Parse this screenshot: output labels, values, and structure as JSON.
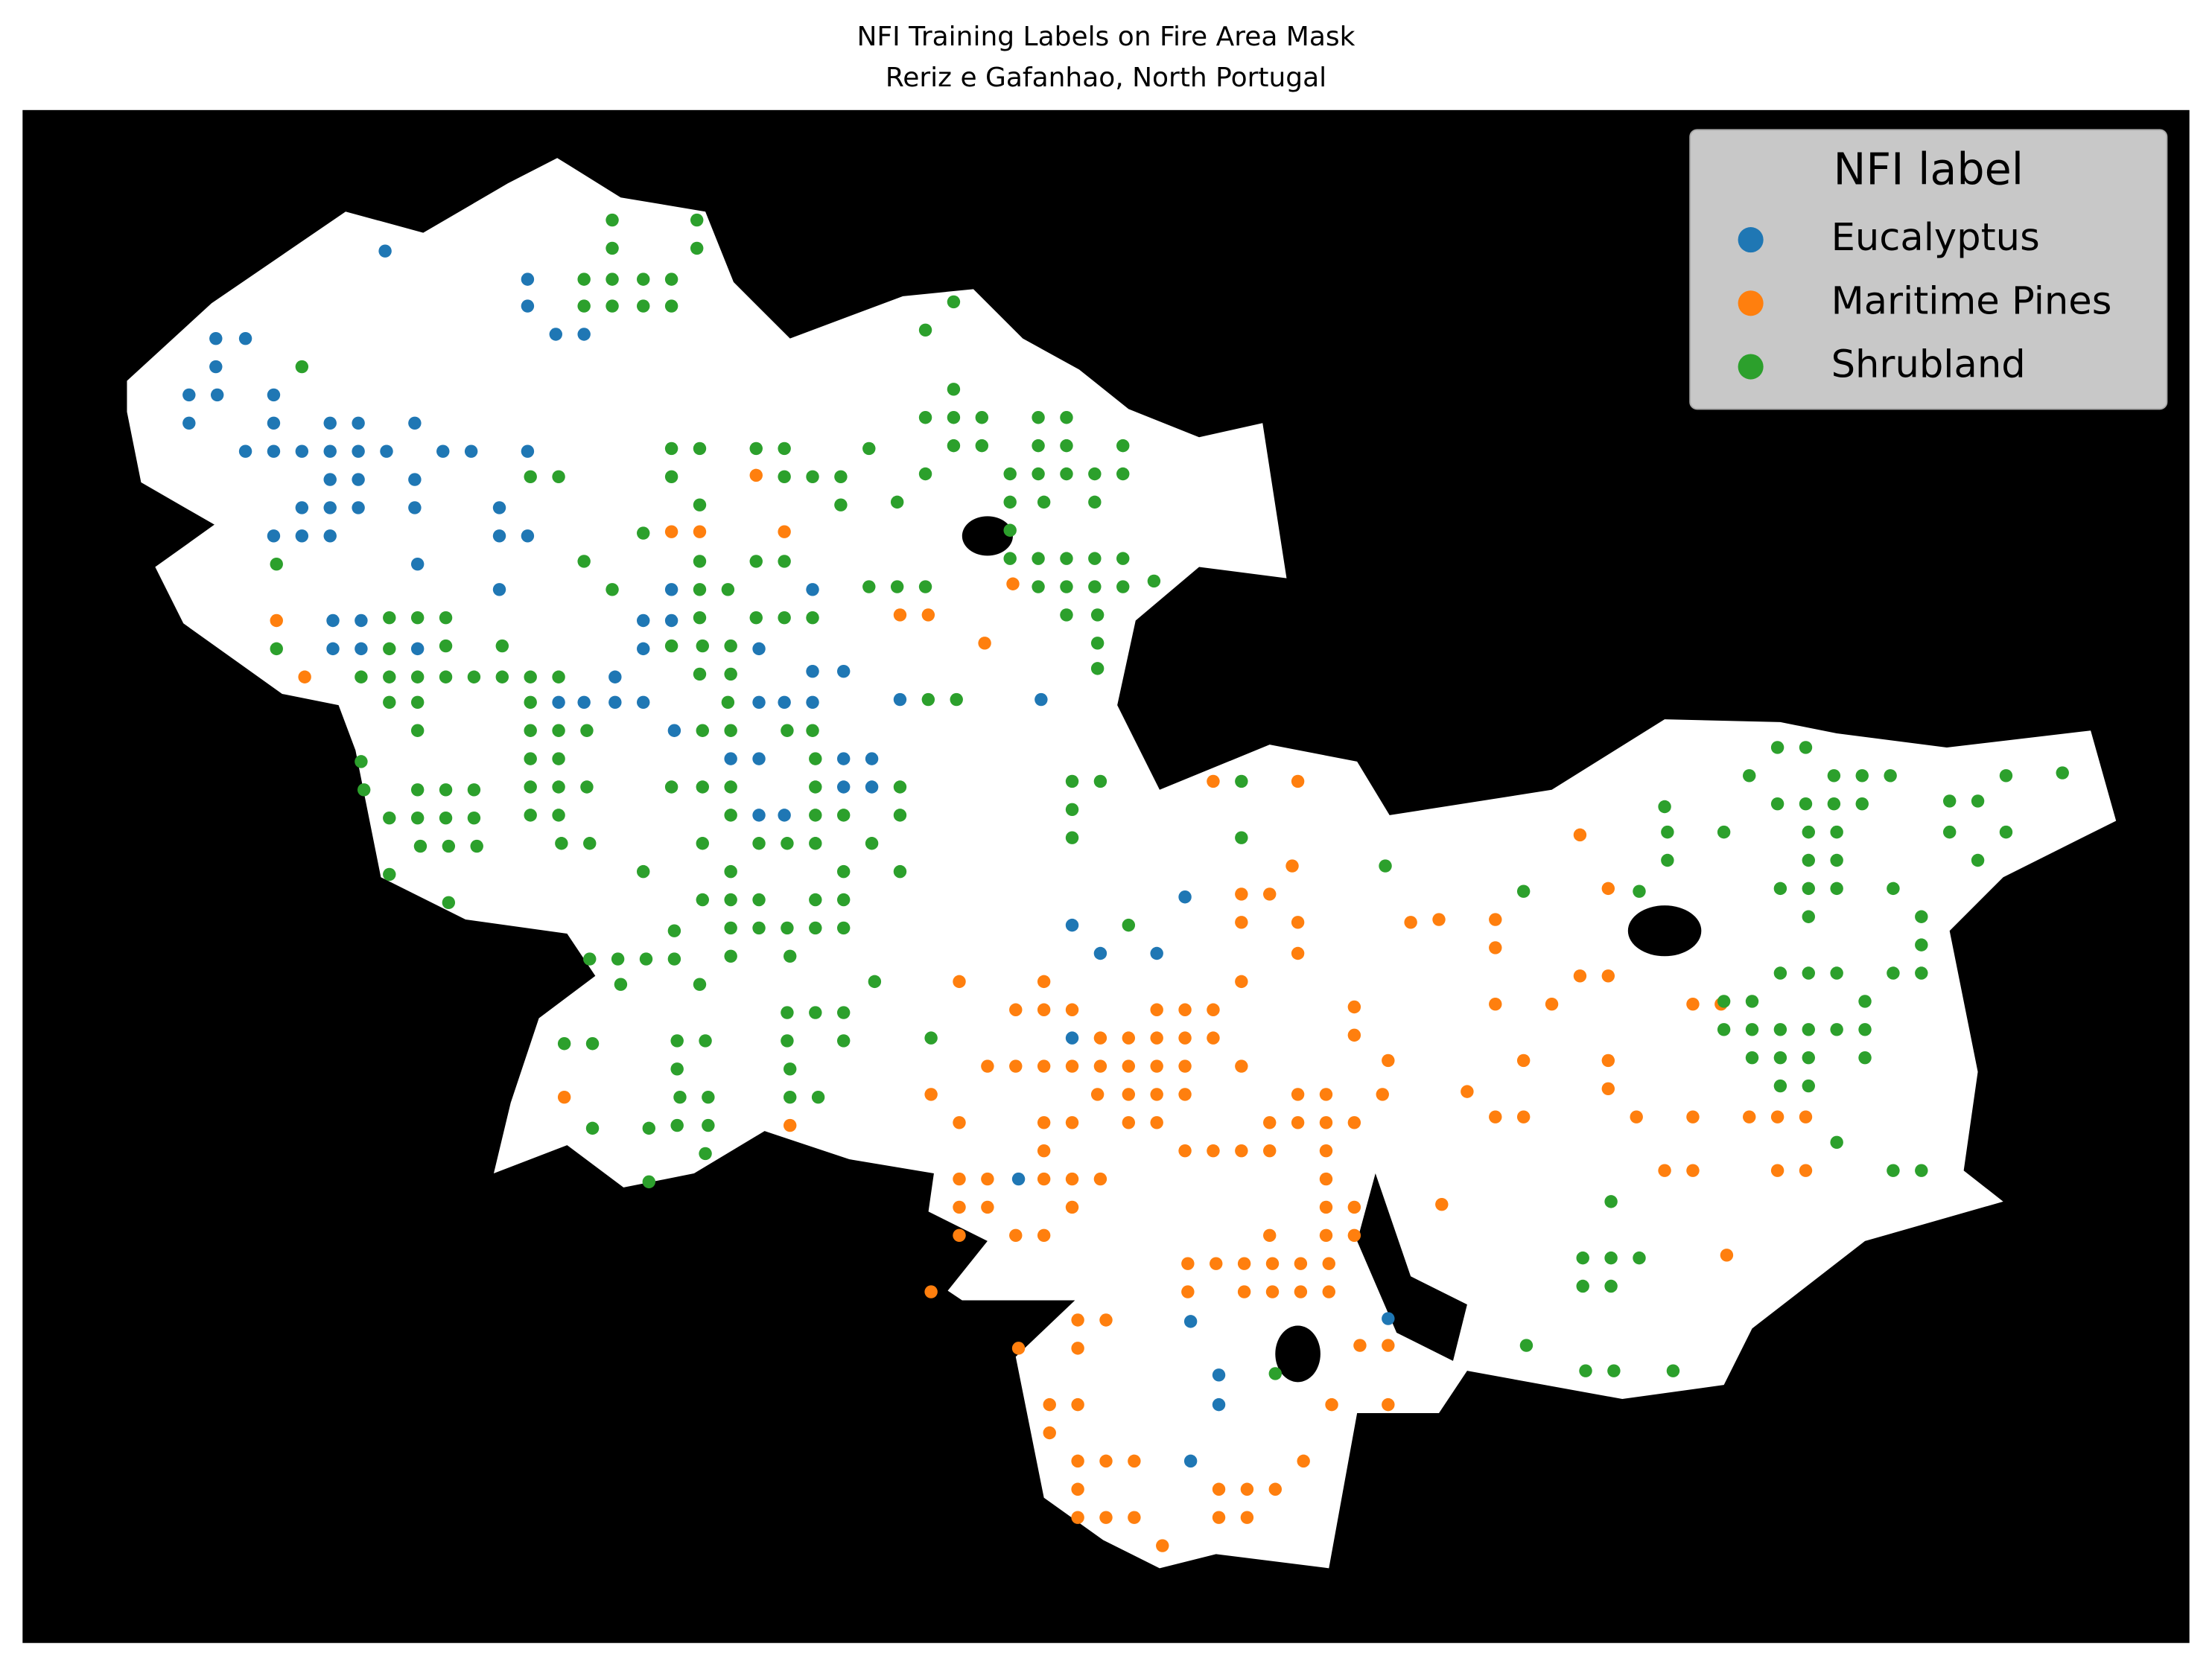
{
  "chart_data": {
    "type": "scatter",
    "title": "NFI Training Labels on Fire Area Mask",
    "subtitle": "Reriz e Gafanhao, North Portugal",
    "legend_title": "NFI label",
    "legend": "upper right",
    "xlim": [
      16,
      1552
    ],
    "ylim": [
      1165,
      78
    ],
    "series": [
      {
        "name": "Eucalyptus",
        "color": "#1f77b4",
        "x": [
          273,
          374,
          374,
          394,
          414,
          153,
          174,
          153,
          134,
          154,
          194,
          134,
          194,
          234,
          254,
          294,
          174,
          194,
          214,
          234,
          254,
          274,
          314,
          334,
          374,
          234,
          254,
          294,
          214,
          234,
          254,
          294,
          354,
          194,
          214,
          234,
          354,
          374,
          296,
          354,
          476,
          576,
          236,
          256,
          456,
          476,
          236,
          256,
          296,
          436,
          456,
          538,
          576,
          598,
          456,
          396,
          414,
          436,
          538,
          556,
          576,
          638,
          738,
          478,
          518,
          538,
          598,
          618,
          598,
          618,
          538,
          556,
          840,
          760,
          780,
          820,
          760,
          722,
          844,
          984,
          864,
          864,
          844
        ],
        "y": [
          178,
          198,
          217,
          237,
          237,
          240,
          240,
          260,
          280,
          280,
          280,
          300,
          300,
          300,
          300,
          300,
          320,
          320,
          320,
          320,
          320,
          320,
          320,
          320,
          320,
          340,
          340,
          340,
          360,
          360,
          360,
          360,
          360,
          380,
          380,
          380,
          380,
          380,
          400,
          418,
          418,
          418,
          440,
          440,
          440,
          440,
          460,
          460,
          460,
          480,
          460,
          460,
          476,
          476,
          498,
          498,
          498,
          498,
          498,
          498,
          498,
          496,
          496,
          518,
          538,
          538,
          538,
          538,
          558,
          558,
          578,
          578,
          636,
          656,
          676,
          676,
          736,
          836,
          937,
          935,
          975,
          996,
          1036
        ]
      },
      {
        "name": "Maritime Pines",
        "color": "#ff7f0e",
        "x": [
          536,
          476,
          496,
          556,
          196,
          638,
          658,
          718,
          698,
          216,
          860,
          920,
          916,
          880,
          900,
          880,
          920,
          1000,
          1020,
          1060,
          1120,
          1140,
          1060,
          680,
          740,
          880,
          920,
          1120,
          1140,
          1100,
          720,
          740,
          760,
          820,
          840,
          860,
          960,
          1060,
          1200,
          1220,
          780,
          800,
          820,
          840,
          860,
          960,
          1080,
          1140,
          700,
          720,
          740,
          760,
          780,
          800,
          820,
          840,
          880,
          984,
          660,
          778,
          800,
          820,
          840,
          920,
          940,
          980,
          1040,
          1140,
          680,
          740,
          760,
          800,
          820,
          900,
          920,
          940,
          960,
          1060,
          1080,
          1160,
          1200,
          1240,
          1260,
          1280,
          560,
          400,
          740,
          840,
          860,
          880,
          900,
          940,
          680,
          700,
          740,
          760,
          780,
          940,
          1180,
          1200,
          1260,
          1280,
          680,
          700,
          760,
          940,
          960,
          1022,
          680,
          720,
          740,
          900,
          940,
          960,
          842,
          862,
          882,
          902,
          922,
          942,
          1224,
          842,
          882,
          902,
          922,
          942,
          660,
          764,
          784,
          722,
          764,
          964,
          984,
          744,
          764,
          944,
          984,
          744,
          764,
          784,
          804,
          924,
          764,
          864,
          884,
          904,
          764,
          784,
          804,
          864,
          884,
          824
        ],
        "y": [
          337,
          377,
          377,
          377,
          440,
          436,
          436,
          414,
          456,
          480,
          554,
          554,
          614,
          634,
          634,
          654,
          654,
          654,
          652,
          652,
          592,
          630,
          672,
          696,
          696,
          696,
          676,
          692,
          692,
          712,
          716,
          716,
          716,
          716,
          716,
          716,
          714,
          712,
          712,
          712,
          736,
          736,
          736,
          736,
          736,
          734,
          752,
          752,
          756,
          756,
          756,
          756,
          756,
          756,
          756,
          756,
          756,
          752,
          776,
          776,
          776,
          776,
          776,
          776,
          776,
          776,
          774,
          772,
          796,
          796,
          796,
          796,
          796,
          796,
          796,
          796,
          796,
          792,
          792,
          792,
          792,
          792,
          792,
          792,
          798,
          778,
          816,
          816,
          816,
          816,
          816,
          816,
          836,
          836,
          836,
          836,
          836,
          836,
          830,
          830,
          830,
          830,
          856,
          856,
          856,
          856,
          856,
          854,
          876,
          876,
          876,
          876,
          876,
          876,
          896,
          896,
          896,
          896,
          896,
          896,
          890,
          916,
          916,
          916,
          916,
          916,
          916,
          936,
          936,
          956,
          956,
          954,
          954,
          996,
          996,
          996,
          996,
          1016,
          1036,
          1036,
          1036,
          1036,
          1056,
          1056,
          1056,
          1056,
          1076,
          1076,
          1076,
          1076,
          1076,
          1096
        ]
      },
      {
        "name": "Shrubland",
        "color": "#2ca02c",
        "x": [
          434,
          494,
          434,
          494,
          414,
          434,
          456,
          476,
          414,
          434,
          456,
          476,
          676,
          656,
          214,
          676,
          656,
          676,
          696,
          736,
          756,
          476,
          496,
          536,
          556,
          616,
          676,
          696,
          736,
          756,
          796,
          376,
          396,
          476,
          556,
          576,
          596,
          656,
          716,
          736,
          756,
          776,
          796,
          496,
          596,
          636,
          716,
          740,
          776,
          456,
          716,
          196,
          414,
          496,
          536,
          556,
          716,
          736,
          756,
          776,
          796,
          434,
          496,
          516,
          616,
          636,
          656,
          736,
          756,
          776,
          796,
          818,
          276,
          296,
          316,
          356,
          496,
          536,
          556,
          576,
          756,
          778,
          196,
          276,
          316,
          476,
          498,
          518,
          778,
          256,
          276,
          296,
          316,
          336,
          356,
          376,
          396,
          496,
          518,
          778,
          276,
          296,
          376,
          516,
          658,
          678,
          296,
          376,
          396,
          416,
          498,
          518,
          558,
          576,
          256,
          376,
          396,
          578,
          258,
          296,
          316,
          336,
          376,
          396,
          416,
          476,
          498,
          518,
          578,
          638,
          760,
          780,
          880,
          1240,
          1260,
          1280,
          1300,
          1320,
          1340,
          1422,
          1462,
          276,
          296,
          316,
          336,
          376,
          396,
          518,
          578,
          598,
          638,
          760,
          1180,
          1260,
          1280,
          1300,
          1320,
          1382,
          1402,
          1182,
          1222,
          1282,
          1302,
          1382,
          1422,
          298,
          318,
          338,
          398,
          418,
          498,
          538,
          558,
          578,
          618,
          760,
          880,
          1182,
          1282,
          1302,
          1402,
          276,
          456,
          518,
          598,
          638,
          982,
          1262,
          1282,
          1302,
          1342,
          1162,
          1080,
          318,
          498,
          518,
          538,
          578,
          598,
          800,
          1282,
          1362,
          478,
          518,
          538,
          558,
          578,
          598,
          1362,
          418,
          438,
          458,
          478,
          518,
          560,
          440,
          496,
          620,
          1262,
          1282,
          1302,
          1342,
          1362,
          1222,
          1242,
          1322,
          558,
          578,
          598,
          1222,
          1242,
          1262,
          1282,
          1302,
          1322,
          400,
          420,
          480,
          500,
          558,
          598,
          660,
          1242,
          1262,
          1282,
          1322,
          480,
          560,
          482,
          502,
          560,
          580,
          1262,
          1282,
          420,
          460,
          480,
          502,
          500,
          1302,
          1342,
          1362,
          460,
          1142,
          1122,
          1142,
          1162,
          1122,
          1142,
          1082,
          1124,
          1144,
          1186,
          904
        ],
        "y": [
          156,
          156,
          176,
          176,
          198,
          198,
          198,
          198,
          217,
          217,
          217,
          217,
          214,
          234,
          260,
          276,
          296,
          296,
          296,
          296,
          296,
          318,
          318,
          318,
          318,
          318,
          316,
          316,
          316,
          316,
          316,
          338,
          338,
          338,
          338,
          338,
          338,
          336,
          336,
          336,
          336,
          336,
          336,
          358,
          358,
          356,
          356,
          356,
          356,
          378,
          376,
          400,
          398,
          398,
          398,
          398,
          396,
          396,
          396,
          396,
          396,
          418,
          418,
          418,
          416,
          416,
          416,
          416,
          416,
          416,
          416,
          412,
          438,
          438,
          438,
          458,
          438,
          438,
          438,
          438,
          436,
          436,
          460,
          460,
          458,
          458,
          458,
          458,
          456,
          480,
          480,
          480,
          480,
          480,
          480,
          480,
          480,
          478,
          478,
          474,
          498,
          498,
          498,
          498,
          496,
          496,
          518,
          518,
          518,
          518,
          518,
          518,
          518,
          518,
          540,
          538,
          538,
          538,
          560,
          560,
          560,
          560,
          558,
          558,
          558,
          558,
          558,
          558,
          558,
          558,
          554,
          554,
          554,
          550,
          530,
          530,
          550,
          550,
          550,
          550,
          548,
          580,
          580,
          580,
          580,
          578,
          578,
          578,
          578,
          578,
          578,
          574,
          572,
          570,
          570,
          570,
          570,
          568,
          568,
          590,
          590,
          590,
          590,
          590,
          590,
          600,
          600,
          600,
          598,
          598,
          598,
          598,
          598,
          598,
          598,
          594,
          594,
          610,
          610,
          610,
          610,
          620,
          618,
          618,
          618,
          618,
          614,
          630,
          630,
          630,
          630,
          632,
          632,
          640,
          638,
          638,
          638,
          638,
          638,
          656,
          650,
          650,
          660,
          658,
          658,
          658,
          658,
          658,
          670,
          680,
          680,
          680,
          680,
          678,
          678,
          698,
          698,
          696,
          690,
          690,
          690,
          690,
          690,
          710,
          710,
          710,
          718,
          718,
          718,
          730,
          730,
          730,
          730,
          730,
          730,
          740,
          740,
          738,
          738,
          738,
          738,
          736,
          750,
          750,
          750,
          750,
          758,
          758,
          778,
          778,
          778,
          778,
          770,
          770,
          800,
          800,
          798,
          798,
          818,
          810,
          830,
          830,
          838,
          852,
          892,
          892,
          892,
          912,
          912,
          954,
          972,
          972,
          972,
          974
        ]
      }
    ]
  }
}
